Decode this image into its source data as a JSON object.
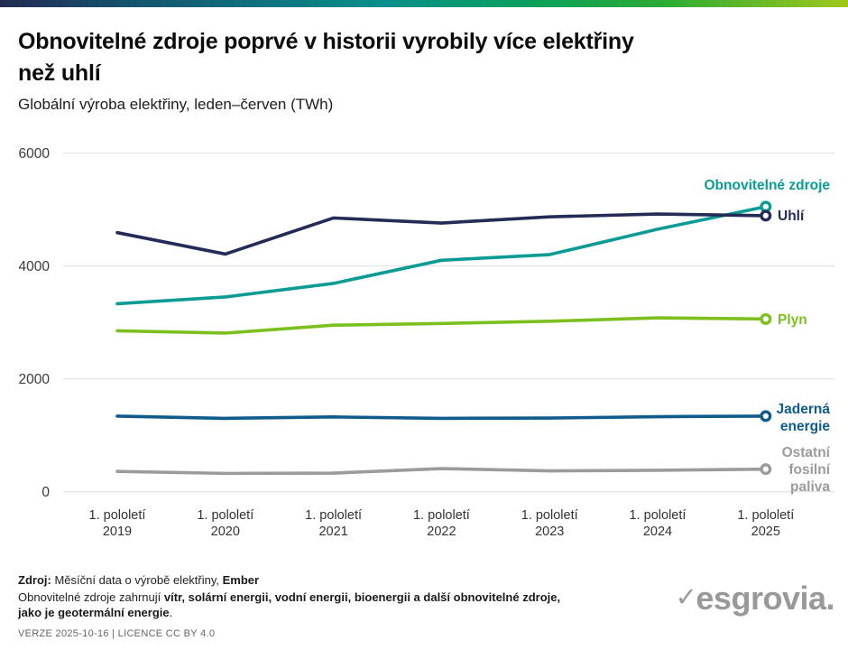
{
  "header": {
    "title_line1": "Obnovitelné zdroje poprvé v historii vyrobily více elektřiny",
    "title_line2": "než uhlí",
    "subtitle": "Globální výroba elektřiny, leden–červen (TWh)"
  },
  "chart_data": {
    "type": "line",
    "title": "Obnovitelné zdroje poprvé v historii vyrobily více elektřiny než uhlí",
    "subtitle": "Globální výroba elektřiny, leden–červen (TWh)",
    "unit": "TWh",
    "categories": [
      "1. pololetí 2019",
      "1. pololetí 2020",
      "1. pololetí 2021",
      "1. pololetí 2022",
      "1. pololetí 2023",
      "1. pololetí 2024",
      "1. pololetí 2025"
    ],
    "series": [
      {
        "name": "Obnovitelné zdroje",
        "color": "#0a9b94",
        "values": [
          3330,
          3450,
          3690,
          4100,
          4200,
          4650,
          5050
        ],
        "label_lines": [
          "Obnovitelné zdroje"
        ]
      },
      {
        "name": "Uhlí",
        "color": "#232b56",
        "values": [
          4590,
          4210,
          4850,
          4760,
          4870,
          4920,
          4890
        ],
        "label_lines": [
          "Uhlí"
        ]
      },
      {
        "name": "Plyn",
        "color": "#7cc01f",
        "values": [
          2850,
          2810,
          2950,
          2980,
          3020,
          3080,
          3060
        ],
        "label_lines": [
          "Plyn"
        ]
      },
      {
        "name": "Jaderná energie",
        "color": "#0f5c8c",
        "values": [
          1340,
          1300,
          1325,
          1300,
          1305,
          1330,
          1340
        ],
        "label_lines": [
          "Jaderná",
          "energie"
        ]
      },
      {
        "name": "Ostatní fosilní paliva",
        "color": "#9b9b9b",
        "values": [
          360,
          325,
          330,
          410,
          370,
          380,
          400
        ],
        "label_lines": [
          "Ostatní",
          "fosilní",
          "paliva"
        ]
      }
    ],
    "ylim": [
      0,
      6000
    ],
    "yticks": [
      0,
      2000,
      4000,
      6000
    ],
    "grid": true,
    "legend_position": "right-end-of-line-labels"
  },
  "footer": {
    "source_label": "Zdroj:",
    "source_text": " Měsíční data o výrobě elektřiny, ",
    "source_org": "Ember",
    "note_prefix": "Obnovitelné zdroje zahrnují ",
    "note_bold1": "vítr, solární energii, vodní energii, bioenergii a další obnovitelné zdroje,",
    "note_bold2": "jako je geotermální energie",
    "note_suffix": ".",
    "version": "VERZE 2025-10-16 | LICENCE CC BY 4.0"
  },
  "brand": {
    "logo_check": "✓",
    "logo_text": "esgrovia."
  }
}
